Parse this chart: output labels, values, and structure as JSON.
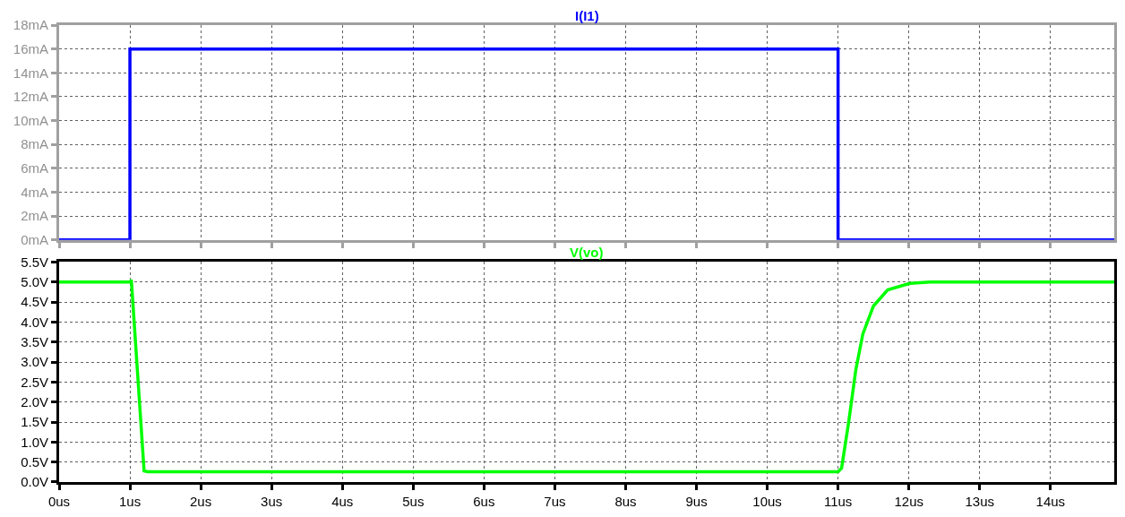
{
  "chart_data": [
    {
      "type": "line",
      "title": "I(I1)",
      "x": [
        0,
        1,
        1,
        11,
        11,
        14.9
      ],
      "xlim": [
        0,
        14.9
      ],
      "xticks": [
        {
          "value": 0,
          "label": null
        },
        {
          "value": 1,
          "label": null
        },
        {
          "value": 2,
          "label": null
        },
        {
          "value": 3,
          "label": null
        },
        {
          "value": 4,
          "label": null
        },
        {
          "value": 5,
          "label": null
        },
        {
          "value": 6,
          "label": null
        },
        {
          "value": 7,
          "label": null
        },
        {
          "value": 8,
          "label": null
        },
        {
          "value": 9,
          "label": null
        },
        {
          "value": 10,
          "label": null
        },
        {
          "value": 11,
          "label": null
        },
        {
          "value": 12,
          "label": null
        },
        {
          "value": 13,
          "label": null
        },
        {
          "value": 14,
          "label": null
        }
      ],
      "ylim": [
        0,
        18
      ],
      "yticks": [
        {
          "value": 0,
          "label": "0mA"
        },
        {
          "value": 2,
          "label": "2mA"
        },
        {
          "value": 4,
          "label": "4mA"
        },
        {
          "value": 6,
          "label": "6mA"
        },
        {
          "value": 8,
          "label": "8mA"
        },
        {
          "value": 10,
          "label": "10mA"
        },
        {
          "value": 12,
          "label": "12mA"
        },
        {
          "value": 14,
          "label": "14mA"
        },
        {
          "value": 16,
          "label": "16mA"
        },
        {
          "value": 18,
          "label": "18mA"
        }
      ],
      "series": [
        {
          "color": "#0000ff",
          "values": [
            0,
            0,
            16,
            16,
            0,
            0
          ]
        }
      ],
      "grid": true,
      "tick_labels": "y",
      "line_style": "solid"
    },
    {
      "type": "line",
      "title": "V(vo)",
      "x": [
        0,
        1.0,
        1.02,
        1.2,
        1.25,
        11.0,
        11.05,
        11.15,
        11.25,
        11.35,
        11.5,
        11.7,
        12.0,
        12.3,
        14.9
      ],
      "xlim": [
        0,
        14.9
      ],
      "xticks": [
        {
          "value": 0,
          "label": "0us"
        },
        {
          "value": 1,
          "label": "1us"
        },
        {
          "value": 2,
          "label": "2us"
        },
        {
          "value": 3,
          "label": "3us"
        },
        {
          "value": 4,
          "label": "4us"
        },
        {
          "value": 5,
          "label": "5us"
        },
        {
          "value": 6,
          "label": "6us"
        },
        {
          "value": 7,
          "label": "7us"
        },
        {
          "value": 8,
          "label": "8us"
        },
        {
          "value": 9,
          "label": "9us"
        },
        {
          "value": 10,
          "label": "10us"
        },
        {
          "value": 11,
          "label": "11us"
        },
        {
          "value": 12,
          "label": "12us"
        },
        {
          "value": 13,
          "label": "13us"
        },
        {
          "value": 14,
          "label": "14us"
        }
      ],
      "ylim": [
        0,
        5.5
      ],
      "yticks": [
        {
          "value": 0,
          "label": "0.0V"
        },
        {
          "value": 0.5,
          "label": "0.5V"
        },
        {
          "value": 1,
          "label": "1.0V"
        },
        {
          "value": 1.5,
          "label": "1.5V"
        },
        {
          "value": 2,
          "label": "2.0V"
        },
        {
          "value": 2.5,
          "label": "2.5V"
        },
        {
          "value": 3,
          "label": "3.0V"
        },
        {
          "value": 3.5,
          "label": "3.5V"
        },
        {
          "value": 4,
          "label": "4.0V"
        },
        {
          "value": 4.5,
          "label": "4.5V"
        },
        {
          "value": 5,
          "label": "5.0V"
        },
        {
          "value": 5.5,
          "label": "5.5V"
        }
      ],
      "series": [
        {
          "color": "#00ff00",
          "values": [
            5.0,
            5.0,
            5.05,
            0.28,
            0.26,
            0.26,
            0.35,
            1.5,
            2.8,
            3.7,
            4.4,
            4.8,
            4.96,
            5.0,
            5.0
          ]
        }
      ],
      "grid": true,
      "line_style": "solid"
    }
  ]
}
